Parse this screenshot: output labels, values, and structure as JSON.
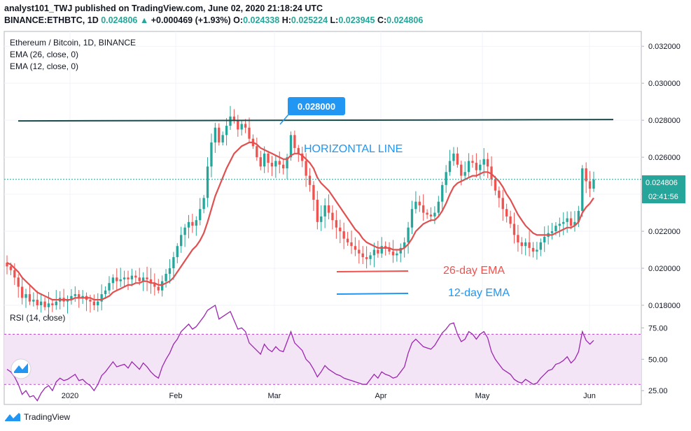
{
  "header": {
    "line1": "analyst101_TWJ published on TradingView.com, June 02, 2020 21:18:24 UTC",
    "symbol": "BINANCE:ETHBTC, 1D",
    "last": "0.024806",
    "change": "+0.000469 (+1.93%)",
    "o_label": "O:",
    "o_value": "0.024338",
    "h_label": "H:",
    "h_value": "0.025224",
    "l_label": "L:",
    "l_value": "0.023945",
    "c_label": "C:",
    "c_value": "0.024806"
  },
  "legend": {
    "pair": "Ethereum / Bitcoin, 1D, BINANCE",
    "ema26": "EMA (26, close, 0)",
    "ema12": "EMA (12, close, 0)",
    "rsi": "RSI (14, close)"
  },
  "annotations": {
    "resistance_value": "0.028000",
    "horizontal_line": "HORIZONTAL LINE",
    "ema26_label": "26-day EMA",
    "ema12_label": "12-day EMA"
  },
  "price_badge": {
    "price": "0.024806",
    "countdown": "02:41:56"
  },
  "footer": {
    "brand": "TradingView"
  },
  "colors": {
    "up": "#26a69a",
    "down": "#ef5350",
    "ema": "#e05050",
    "rsi": "#9c27b0",
    "rsi_band": "#f3e5f5",
    "accent": "#2196f3",
    "resistance": "#1b4a4a"
  },
  "chart_data": [
    {
      "type": "candlestick",
      "title": "Ethereum / Bitcoin, 1D, BINANCE",
      "x_axis": {
        "ticks": [
          "2020",
          "Feb",
          "Mar",
          "Apr",
          "May",
          "Jun"
        ]
      },
      "y_axis": {
        "side": "right",
        "ylim": [
          0.018,
          0.0328
        ],
        "ticks": [
          "0.018000",
          "0.020000",
          "0.022000",
          "0.024000",
          "0.026000",
          "0.028000",
          "0.030000",
          "0.032000"
        ]
      },
      "horizontal_line": 0.028,
      "last_price": 0.024806,
      "close_series": [
        0.0201,
        0.0199,
        0.0195,
        0.019,
        0.0184,
        0.0186,
        0.0182,
        0.0183,
        0.018,
        0.0182,
        0.0179,
        0.0181,
        0.018,
        0.0182,
        0.0184,
        0.0182,
        0.0183,
        0.0185,
        0.0186,
        0.0184,
        0.0185,
        0.0183,
        0.0182,
        0.018,
        0.0182,
        0.0186,
        0.0188,
        0.0192,
        0.0195,
        0.0193,
        0.0194,
        0.0195,
        0.0194,
        0.0196,
        0.0195,
        0.0193,
        0.0195,
        0.0194,
        0.0192,
        0.019,
        0.0188,
        0.0193,
        0.0197,
        0.02,
        0.0206,
        0.0212,
        0.0218,
        0.0222,
        0.0225,
        0.0223,
        0.0226,
        0.0232,
        0.0238,
        0.0255,
        0.0268,
        0.0276,
        0.0268,
        0.0272,
        0.0277,
        0.0282,
        0.028,
        0.0275,
        0.0278,
        0.0276,
        0.027,
        0.0266,
        0.026,
        0.0255,
        0.0262,
        0.0257,
        0.0255,
        0.0258,
        0.0256,
        0.0254,
        0.026,
        0.0272,
        0.0265,
        0.0262,
        0.0258,
        0.025,
        0.0245,
        0.0237,
        0.0225,
        0.0228,
        0.0234,
        0.023,
        0.0226,
        0.0222,
        0.022,
        0.0216,
        0.0214,
        0.0212,
        0.021,
        0.0208,
        0.0206,
        0.0205,
        0.0207,
        0.021,
        0.0208,
        0.0212,
        0.0211,
        0.0209,
        0.0207,
        0.0208,
        0.0211,
        0.0214,
        0.0222,
        0.0232,
        0.0236,
        0.0234,
        0.023,
        0.0229,
        0.0228,
        0.023,
        0.0236,
        0.0245,
        0.0252,
        0.0258,
        0.0262,
        0.0256,
        0.025,
        0.0252,
        0.0258,
        0.0257,
        0.0253,
        0.0256,
        0.0259,
        0.0255,
        0.0248,
        0.0242,
        0.0238,
        0.0232,
        0.0228,
        0.0224,
        0.0218,
        0.0214,
        0.0212,
        0.0214,
        0.0211,
        0.0209,
        0.021,
        0.0214,
        0.0217,
        0.0219,
        0.022,
        0.0223,
        0.0224,
        0.0225,
        0.0227,
        0.0223,
        0.0225,
        0.0231,
        0.0254,
        0.0247,
        0.0243,
        0.0248
      ],
      "ema_series": [
        0.0203,
        0.0202,
        0.02,
        0.0198,
        0.0195,
        0.0193,
        0.0191,
        0.0189,
        0.0187,
        0.0186,
        0.0185,
        0.0184,
        0.0183,
        0.0183,
        0.0183,
        0.0183,
        0.0183,
        0.0183,
        0.0184,
        0.0184,
        0.0184,
        0.0184,
        0.0184,
        0.0183,
        0.0183,
        0.0183,
        0.0184,
        0.0185,
        0.0187,
        0.0188,
        0.0189,
        0.019,
        0.0191,
        0.0191,
        0.0192,
        0.0192,
        0.0193,
        0.0193,
        0.0192,
        0.0192,
        0.0191,
        0.0191,
        0.0192,
        0.0193,
        0.0195,
        0.0198,
        0.0201,
        0.0204,
        0.0207,
        0.021,
        0.0212,
        0.0215,
        0.0219,
        0.0225,
        0.0232,
        0.0239,
        0.0244,
        0.0249,
        0.0254,
        0.0258,
        0.0262,
        0.0264,
        0.0266,
        0.0267,
        0.0268,
        0.0268,
        0.0267,
        0.0265,
        0.0264,
        0.0263,
        0.0262,
        0.0261,
        0.026,
        0.0259,
        0.0259,
        0.0261,
        0.0262,
        0.0262,
        0.0261,
        0.0259,
        0.0257,
        0.0254,
        0.0249,
        0.0246,
        0.0244,
        0.0242,
        0.0239,
        0.0236,
        0.0233,
        0.023,
        0.0227,
        0.0224,
        0.0221,
        0.0219,
        0.0216,
        0.0214,
        0.0213,
        0.0212,
        0.0211,
        0.0211,
        0.0211,
        0.0211,
        0.021,
        0.021,
        0.021,
        0.0211,
        0.0213,
        0.0216,
        0.022,
        0.0222,
        0.0224,
        0.0225,
        0.0226,
        0.0226,
        0.0228,
        0.0231,
        0.0235,
        0.024,
        0.0244,
        0.0246,
        0.0247,
        0.0248,
        0.0249,
        0.025,
        0.025,
        0.0251,
        0.0252,
        0.0252,
        0.0251,
        0.0249,
        0.0247,
        0.0244,
        0.024,
        0.0237,
        0.0233,
        0.0229,
        0.0226,
        0.0223,
        0.0221,
        0.0219,
        0.0218,
        0.0218,
        0.0218,
        0.0218,
        0.0218,
        0.0219,
        0.022,
        0.0221,
        0.0222,
        0.0222,
        0.0223,
        0.0225,
        0.023,
        0.0233,
        0.0235,
        0.0238
      ]
    },
    {
      "type": "line",
      "title": "RSI (14, close)",
      "y_axis": {
        "side": "right",
        "ylim": [
          14,
          93
        ],
        "ticks": [
          "25.00",
          "50.00",
          "75.00"
        ]
      },
      "band": [
        30,
        70
      ],
      "values": [
        42,
        40,
        36,
        30,
        22,
        25,
        20,
        21,
        17,
        23,
        27,
        29,
        25,
        32,
        35,
        33,
        34,
        36,
        38,
        33,
        34,
        31,
        29,
        25,
        30,
        37,
        40,
        44,
        48,
        44,
        45,
        46,
        43,
        48,
        45,
        42,
        47,
        44,
        40,
        37,
        35,
        44,
        50,
        55,
        62,
        66,
        72,
        75,
        78,
        74,
        76,
        80,
        84,
        89,
        91,
        93,
        82,
        84,
        86,
        88,
        81,
        74,
        75,
        72,
        63,
        60,
        57,
        54,
        62,
        58,
        56,
        60,
        57,
        56,
        64,
        72,
        63,
        60,
        57,
        50,
        47,
        42,
        36,
        40,
        45,
        42,
        40,
        38,
        37,
        35,
        34,
        33,
        32,
        31,
        30,
        30,
        34,
        38,
        35,
        40,
        38,
        37,
        35,
        36,
        40,
        44,
        55,
        63,
        66,
        63,
        60,
        59,
        58,
        61,
        66,
        71,
        74,
        78,
        79,
        70,
        64,
        66,
        72,
        70,
        66,
        70,
        72,
        67,
        56,
        50,
        46,
        42,
        40,
        38,
        34,
        32,
        31,
        34,
        32,
        30,
        31,
        35,
        38,
        41,
        42,
        46,
        47,
        49,
        52,
        47,
        50,
        56,
        72,
        65,
        62,
        65
      ]
    }
  ]
}
